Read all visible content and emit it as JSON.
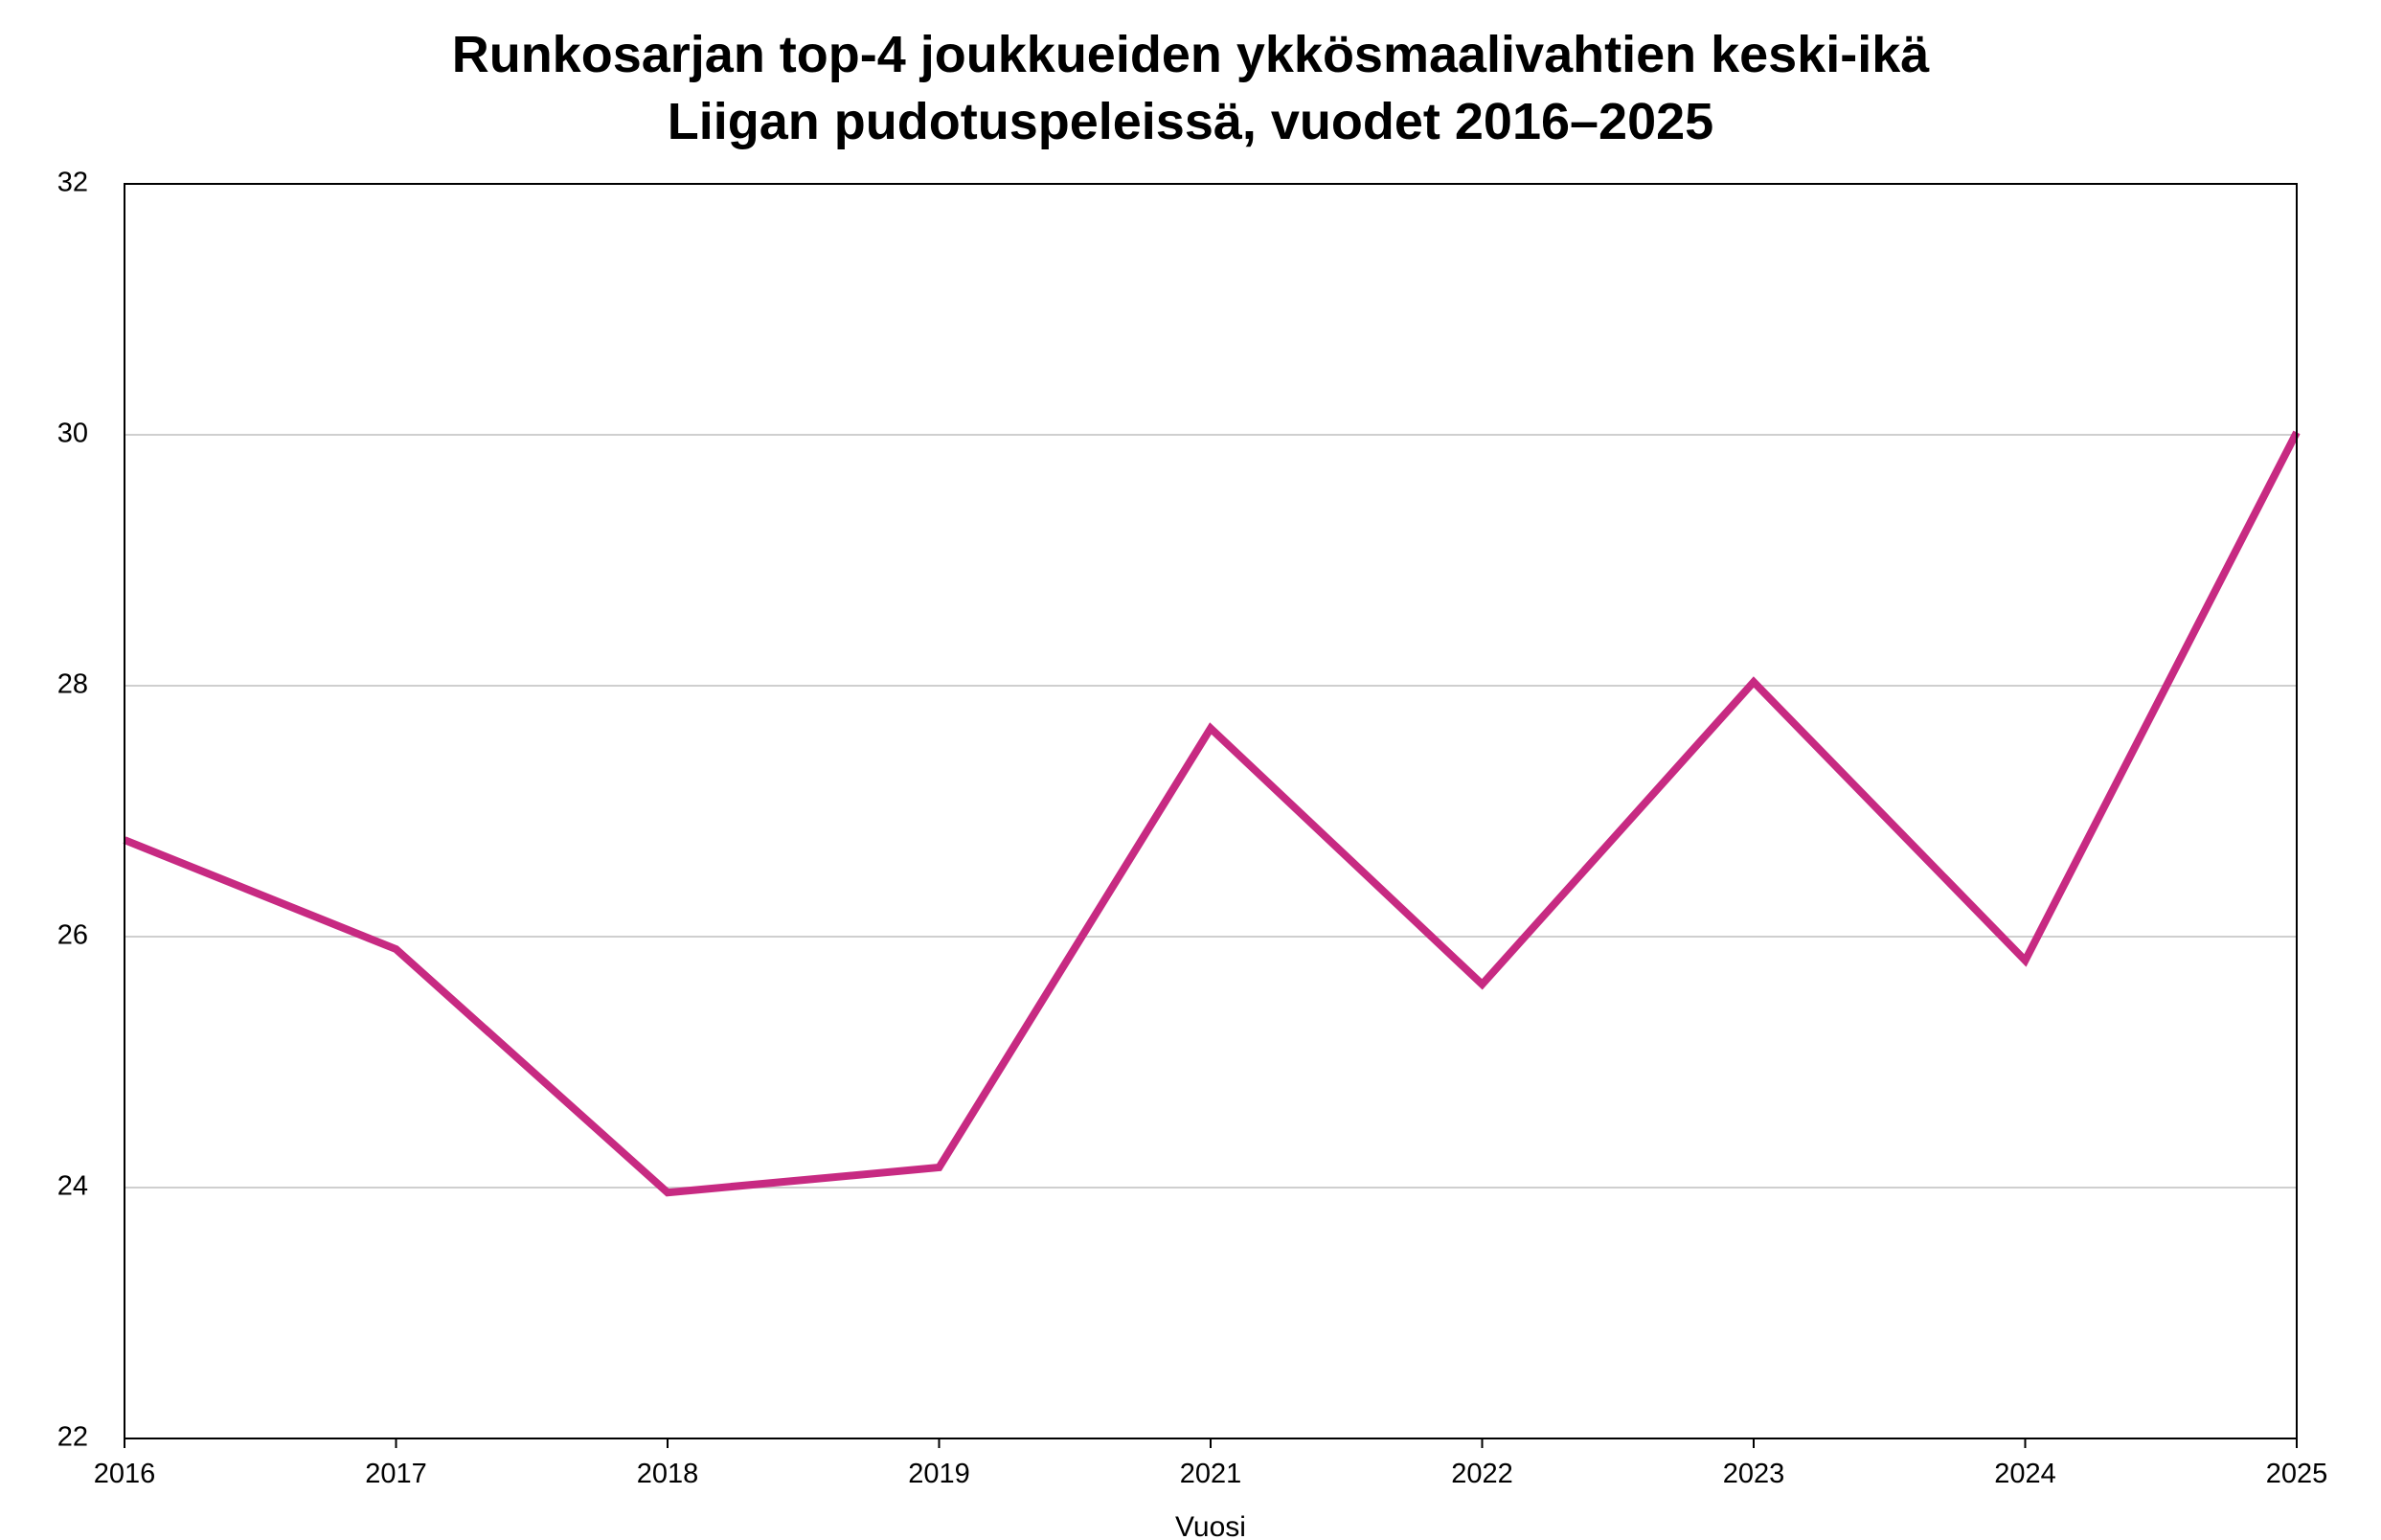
{
  "chart_data": {
    "type": "line",
    "title_lines": [
      "Runkosarjan top-4 joukkueiden ykkösmaalivahtien keski-ikä",
      "Liigan pudotuspeleissä, vuodet 2016–2025"
    ],
    "xlabel": "Vuosi",
    "ylabel": "",
    "categories": [
      "2016",
      "2017",
      "2018",
      "2019",
      "2021",
      "2022",
      "2023",
      "2024",
      "2025"
    ],
    "series": [
      {
        "color": "#c72a82",
        "values": [
          26.77,
          25.9,
          23.96,
          24.16,
          27.66,
          25.62,
          28.03,
          25.81,
          30.02
        ]
      }
    ],
    "ylim": [
      22,
      32
    ],
    "yticks": [
      22,
      24,
      26,
      28,
      30,
      32
    ],
    "ytick_labels": [
      "22",
      "24",
      "26",
      "28",
      "30",
      "32"
    ],
    "grid": {
      "horizontal": true,
      "vertical": false
    },
    "legend": "none"
  }
}
